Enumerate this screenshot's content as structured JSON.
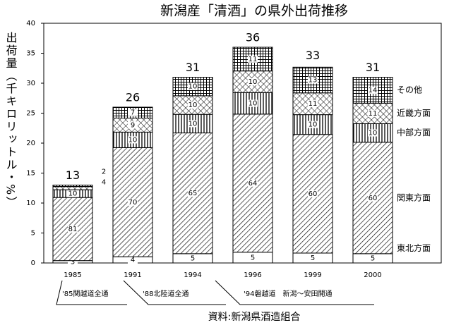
{
  "chart_data": {
    "type": "stacked_percent_bar",
    "title": "新潟産「清酒」の県外出荷推移",
    "y_label": "出荷量（千キロリットル・%）",
    "source": "資料:新潟県酒造組合",
    "categories": [
      "1985",
      "1991",
      "1994",
      "1996",
      "1999",
      "2000"
    ],
    "totals": [
      13,
      26,
      31,
      36,
      33,
      31
    ],
    "series": [
      {
        "name": "東北方面",
        "pattern": "plain",
        "values": [
          3,
          4,
          5,
          5,
          5,
          5
        ]
      },
      {
        "name": "関東方面",
        "pattern": "diagonal",
        "values": [
          81,
          70,
          65,
          64,
          60,
          60
        ]
      },
      {
        "name": "中部方面",
        "pattern": "vertical",
        "values": [
          10,
          10,
          10,
          10,
          10,
          10
        ]
      },
      {
        "name": "近畿方面",
        "pattern": "crosshatch",
        "values": [
          4,
          9,
          10,
          10,
          11,
          11
        ]
      },
      {
        "name": "その他",
        "pattern": "grid",
        "values": [
          2,
          7,
          10,
          11,
          13,
          14
        ]
      }
    ],
    "annotations": [
      "'85関越道全通",
      "'88北陸道全通",
      "'94磐越道　新潟～安田開通"
    ],
    "ylim": [
      0,
      40
    ],
    "yticks": [
      0,
      5,
      10,
      15,
      20,
      25,
      30,
      35,
      40
    ]
  }
}
